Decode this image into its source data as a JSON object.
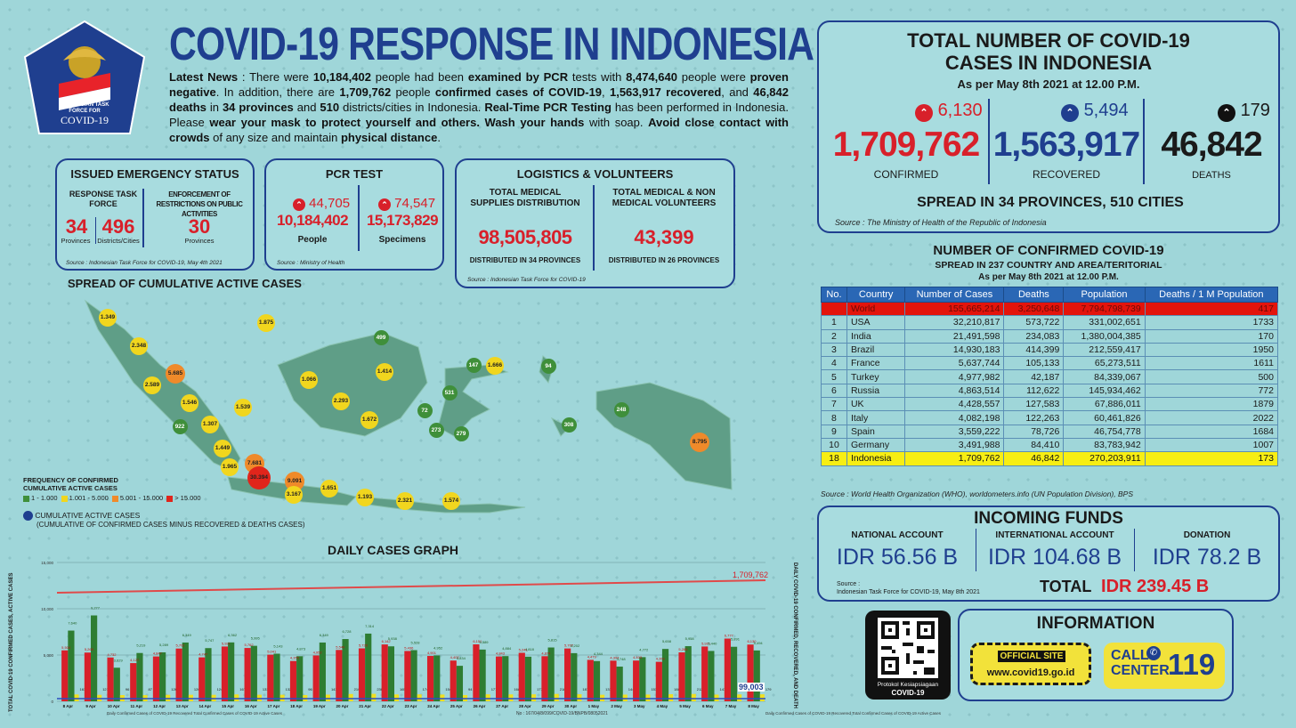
{
  "logo": {
    "line1": "INDONESIAN TASK",
    "line2": "FORCE FOR",
    "line3": "COVID-19"
  },
  "header": {
    "title": "COVID-19 RESPONSE IN INDONESIA",
    "news": {
      "p1": "Latest News",
      "p2": " : There were ",
      "p3": "10,184,402",
      "p4": " people had been ",
      "p5": "examined by PCR",
      "p6": " tests with ",
      "p7": "8,474,640",
      "p8": " people were ",
      "p9": "proven negative",
      "p10": ". In addition, there are ",
      "p11": "1,709,762",
      "p12": " people ",
      "p13": "confirmed cases of COVID-19",
      "p14": ", ",
      "p15": "1,563,917 recovered",
      "p16": ", and ",
      "p17": "46,842 deaths",
      "p18": " in ",
      "p19": "34 provinces",
      "p20": " and ",
      "p21": "510",
      "p22": " districts/cities in Indonesia. ",
      "p23": "Real-Time PCR Testing",
      "p24": " has been performed in Indonesia. Please ",
      "p25": "wear your mask to protect yourself and others. Wash your hands",
      "p26": " with soap. ",
      "p27": "Avoid close contact with crowds",
      "p28": " of any size and maintain ",
      "p29": "physical distance",
      "p30": "."
    }
  },
  "emergency": {
    "title": "ISSUED EMERGENCY STATUS",
    "col1_label": "RESPONSE TASK FORCE",
    "col2_label": "ENFORCEMENT OF RESTRICTIONS ON PUBLIC ACTIVITIES",
    "v1": "34",
    "v1_label": "Provinces",
    "v2": "496",
    "v2_label": "Districts/Cities",
    "v3": "30",
    "v3_label": "Provinces",
    "source": "Source : Indonesian Task Force for COVID-19, May 4th 2021"
  },
  "pcr": {
    "title": "PCR TEST",
    "inc1": "44,705",
    "val1": "10,184,402",
    "lbl1": "People",
    "inc2": "74,547",
    "val2": "15,173,829",
    "lbl2": "Specimens",
    "source": "Source : Ministry of Health"
  },
  "logistics": {
    "title": "LOGISTICS & VOLUNTEERS",
    "l1": "TOTAL MEDICAL SUPPLIES DISTRIBUTION",
    "v1": "98,505,805",
    "d1": "DISTRIBUTED IN 34 PROVINCES",
    "l2": "TOTAL MEDICAL & NON MEDICAL VOLUNTEERS",
    "v2": "43,399",
    "d2": "DISTRIBUTED IN 26 PROVINCES",
    "source": "Source : Indonesian Task Force for COVID-19"
  },
  "totals": {
    "title1": "TOTAL NUMBER OF COVID-19",
    "title2": "CASES IN INDONESIA",
    "asof": "As per May 8th 2021 at 12.00 P.M.",
    "confirmed_inc": "6,130",
    "confirmed": "1,709,762",
    "confirmed_lbl": "CONFIRMED",
    "recovered_inc": "5,494",
    "recovered": "1,563,917",
    "recovered_lbl": "RECOVERED",
    "deaths_inc": "179",
    "deaths": "46,842",
    "deaths_lbl": "DEATHS",
    "spread": "SPREAD IN 34 PROVINCES, 510 CITIES",
    "source": "Source : The Ministry of Health of the Republic of Indonesia",
    "colors": {
      "confirmed": "#d8202a",
      "recovered": "#1f3f8f",
      "deaths": "#111111"
    }
  },
  "world": {
    "title": "NUMBER OF CONFIRMED COVID-19",
    "subtitle": "SPREAD IN 237 COUNTRY AND AREA/TERITORIAL",
    "asof": "As per May 8th 2021 at 12.00 P.M.",
    "headers": [
      "No.",
      "Country",
      "Number of Cases",
      "Deaths",
      "Population",
      "Deaths / 1 M Population"
    ],
    "rows": [
      [
        "",
        "World",
        "155,665,214",
        "3,250,648",
        "7,794,798,739",
        "417"
      ],
      [
        "1",
        "USA",
        "32,210,817",
        "573,722",
        "331,002,651",
        "1733"
      ],
      [
        "2",
        "India",
        "21,491,598",
        "234,083",
        "1,380,004,385",
        "170"
      ],
      [
        "3",
        "Brazil",
        "14,930,183",
        "414,399",
        "212,559,417",
        "1950"
      ],
      [
        "4",
        "France",
        "5,637,744",
        "105,133",
        "65,273,511",
        "1611"
      ],
      [
        "5",
        "Turkey",
        "4,977,982",
        "42,187",
        "84,339,067",
        "500"
      ],
      [
        "6",
        "Russia",
        "4,863,514",
        "112,622",
        "145,934,462",
        "772"
      ],
      [
        "7",
        "UK",
        "4,428,557",
        "127,583",
        "67,886,011",
        "1879"
      ],
      [
        "8",
        "Italy",
        "4,082,198",
        "122,263",
        "60,461,826",
        "2022"
      ],
      [
        "9",
        "Spain",
        "3,559,222",
        "78,726",
        "46,754,778",
        "1684"
      ],
      [
        "10",
        "Germany",
        "3,491,988",
        "84,410",
        "83,783,942",
        "1007"
      ],
      [
        "18",
        "Indonesia",
        "1,709,762",
        "46,842",
        "270,203,911",
        "173"
      ]
    ],
    "source": "Source : World Health Organization (WHO), worldometers.info (UN Population Division), BPS"
  },
  "funds": {
    "title": "INCOMING FUNDS",
    "national_lbl": "NATIONAL ACCOUNT",
    "national": "IDR 56.56 B",
    "intl_lbl": "INTERNATIONAL ACCOUNT",
    "intl": "IDR 104.68 B",
    "donation_lbl": "DONATION",
    "donation": "IDR 78.2 B",
    "source_lbl": "Source :",
    "source": "Indonesian Task Force for COVID-19, May 8th 2021",
    "total_lbl": "TOTAL",
    "total": "IDR 239.45 B"
  },
  "info": {
    "title": "INFORMATION",
    "site_lbl": "OFFICIAL SITE",
    "site": "www.covid19.go.id",
    "call1": "CALL",
    "call2": "CENTER",
    "call_num": "119",
    "qr_lbl1": "Protokol Kesiapsiagaan",
    "qr_lbl2": "COVID-19"
  },
  "map": {
    "title": "SPREAD OF CUMULATIVE ACTIVE CASES",
    "legend_title1": "FREQUENCY OF CONFIRMED",
    "legend_title2": "CUMULATIVE ACTIVE CASES",
    "legend": [
      {
        "label": "1 - 1.000",
        "color": "#3f8f3a"
      },
      {
        "label": "1.001 - 5.000",
        "color": "#f1d61e"
      },
      {
        "label": "5.001 - 15.000",
        "color": "#ef8a2a"
      },
      {
        "label": "> 15.000",
        "color": "#e0251b"
      }
    ],
    "cum_lbl": "CUMULATIVE ACTIVE CASES",
    "cum_note": "(CUMULATIVE OF CONFIRMED CASES MINUS RECOVERED & DEATHS CASES)",
    "bubbles": [
      {
        "v": "1.349",
        "c": "y"
      },
      {
        "v": "1.875",
        "c": "y"
      },
      {
        "v": "2.348",
        "c": "y"
      },
      {
        "v": "5.685",
        "c": "o"
      },
      {
        "v": "2.589",
        "c": "y"
      },
      {
        "v": "1.546",
        "c": "y"
      },
      {
        "v": "1.539",
        "c": "y"
      },
      {
        "v": "1.307",
        "c": "y"
      },
      {
        "v": "922",
        "c": "g"
      },
      {
        "v": "1.449",
        "c": "y"
      },
      {
        "v": "1.965",
        "c": "y"
      },
      {
        "v": "7.681",
        "c": "o"
      },
      {
        "v": "30.394",
        "c": "r"
      },
      {
        "v": "9.091",
        "c": "o"
      },
      {
        "v": "3.167",
        "c": "y"
      },
      {
        "v": "1.651",
        "c": "y"
      },
      {
        "v": "1.193",
        "c": "y"
      },
      {
        "v": "2.321",
        "c": "y"
      },
      {
        "v": "1.574",
        "c": "y"
      },
      {
        "v": "499",
        "c": "g"
      },
      {
        "v": "1.066",
        "c": "y"
      },
      {
        "v": "1.414",
        "c": "y"
      },
      {
        "v": "2.293",
        "c": "y"
      },
      {
        "v": "1.672",
        "c": "y"
      },
      {
        "v": "147",
        "c": "g"
      },
      {
        "v": "1.666",
        "c": "y"
      },
      {
        "v": "531",
        "c": "g"
      },
      {
        "v": "72",
        "c": "g"
      },
      {
        "v": "273",
        "c": "g"
      },
      {
        "v": "279",
        "c": "g"
      },
      {
        "v": "94",
        "c": "g"
      },
      {
        "v": "308",
        "c": "g"
      },
      {
        "v": "248",
        "c": "g"
      },
      {
        "v": "8.795",
        "c": "o"
      }
    ]
  },
  "daily": {
    "title": "DAILY CASES GRAPH",
    "ylabel_left": "TOTAL COVID-19 CONFIRMED CASES, ACTIVE CASES",
    "ylabel_right": "DAILY COVID-19 CONFIRMED, RECOVERED, AND DEATH",
    "total_label": "1,709,762",
    "active_label": "99,003",
    "note": "No : 167/04/8/099/COVID-19/BNPB/08052021",
    "legend_left": "Daily Confirmed Cases of COVID-19   Recovered   Total Confirmed Cases of COVID-19   Active Cases",
    "legend_right": "Daily Confirmed Cases of COVID-19   Recovered   Total Confirmed Cases of COVID-19   Active Cases"
  },
  "chart_data": {
    "type": "bar",
    "categories": [
      "8 Apr",
      "9 Apr",
      "10 Apr",
      "11 Apr",
      "12 Apr",
      "13 Apr",
      "14 Apr",
      "15 Apr",
      "16 Apr",
      "17 Apr",
      "18 Apr",
      "19 Apr",
      "20 Apr",
      "21 Apr",
      "22 Apr",
      "23 Apr",
      "24 Apr",
      "25 Apr",
      "26 Apr",
      "27 Apr",
      "28 Apr",
      "29 Apr",
      "30 Apr",
      "1 May",
      "2 May",
      "3 May",
      "4 May",
      "5 May",
      "6 May",
      "7 May",
      "8 May"
    ],
    "series": [
      {
        "name": "Daily Confirmed Cases of COVID-19",
        "color": "#d8202a",
        "values": [
          5504,
          5265,
          4732,
          4127,
          4847,
          5702,
          4747,
          5921,
          5762,
          5041,
          4355,
          4952,
          5549,
          5720,
          6142,
          5436,
          4901,
          4402,
          6151,
          4843,
          5241,
          4874,
          5707,
          4479,
          4394,
          4403,
          4269,
          5285,
          5921,
          6777,
          6130
        ]
      },
      {
        "name": "Recovered",
        "color": "#2e7d32",
        "values": [
          7640,
          9277,
          3629,
          5219,
          5289,
          6349,
          5747,
          6362,
          5995,
          5143,
          4873,
          6349,
          6728,
          7314,
          5938,
          5528,
          4952,
          3834,
          5589,
          4884,
          4818,
          5815,
          5202,
          4344,
          3748,
          4772,
          5658,
          5958,
          5440,
          5891,
          5494
        ]
      },
      {
        "name": "Death",
        "color": "#f0e020",
        "values": [
          163,
          121,
          96,
          87,
          126,
          126,
          124,
          167,
          133,
          132,
          96,
          143,
          210,
          230,
          165,
          174,
          154,
          94,
          177,
          168,
          177,
          218,
          187,
          131,
          144,
          153,
          188,
          212,
          147,
          167,
          179
        ]
      }
    ],
    "total_confirmed_end": 1709762,
    "active_end": 99003,
    "ylim": [
      0,
      15000
    ]
  }
}
